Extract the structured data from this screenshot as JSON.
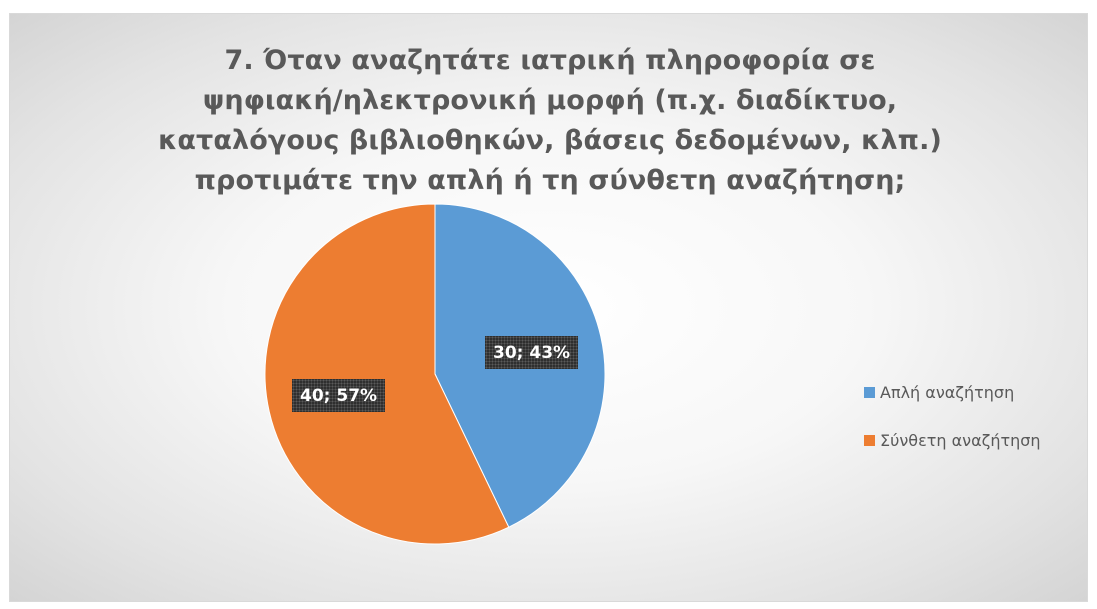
{
  "chart_data": {
    "type": "pie",
    "title": "7. Όταν αναζητάτε ιατρική πληροφορία σε ψηφιακή/ηλεκτρονική μορφή (π.χ. διαδίκτυο, καταλόγους βιβλιοθηκών, βάσεις δεδομένων, κλπ.) προτιμάτε την απλή ή τη σύνθετη αναζήτηση;",
    "title_lines": [
      "7. Όταν αναζητάτε ιατρική πληροφορία σε",
      "ψηφιακή/ηλεκτρονική μορφή (π.χ. διαδίκτυο,",
      "καταλόγους βιβλιοθηκών, βάσεις δεδομένων, κλπ.)",
      "προτιμάτε την απλή ή τη σύνθετη αναζήτηση;"
    ],
    "categories": [
      "Απλή αναζήτηση",
      "Σύνθετη αναζήτηση"
    ],
    "values": [
      30,
      40
    ],
    "percentages": [
      43,
      57
    ],
    "data_labels": [
      "30; 43%",
      "40; 57%"
    ],
    "colors": [
      "#5b9bd5",
      "#ed7d31"
    ],
    "legend_position": "right"
  }
}
